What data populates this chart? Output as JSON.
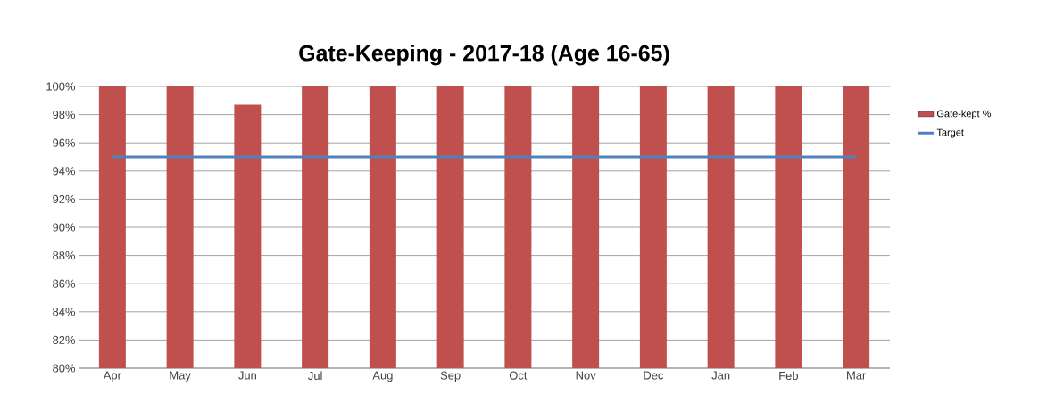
{
  "chart_data": {
    "type": "bar",
    "title": "Gate-Keeping - 2017-18 (Age 16-65)",
    "categories": [
      "Apr",
      "May",
      "Jun",
      "Jul",
      "Aug",
      "Sep",
      "Oct",
      "Nov",
      "Dec",
      "Jan",
      "Feb",
      "Mar"
    ],
    "series": [
      {
        "name": "Gate-kept %",
        "color": "#c0504d",
        "values": [
          100,
          100,
          98.7,
          100,
          100,
          100,
          100,
          100,
          100,
          100,
          100,
          100
        ]
      },
      {
        "name": "Target",
        "type": "line",
        "color": "#4f81bd",
        "values": [
          95,
          95,
          95,
          95,
          95,
          95,
          95,
          95,
          95,
          95,
          95,
          95
        ]
      }
    ],
    "ylim": [
      80,
      100
    ],
    "yticks": [
      {
        "value": 80,
        "label": "80%"
      },
      {
        "value": 82,
        "label": "82%"
      },
      {
        "value": 84,
        "label": "84%"
      },
      {
        "value": 86,
        "label": "86%"
      },
      {
        "value": 88,
        "label": "88%"
      },
      {
        "value": 90,
        "label": "90%"
      },
      {
        "value": 92,
        "label": "92%"
      },
      {
        "value": 94,
        "label": "94%"
      },
      {
        "value": 96,
        "label": "96%"
      },
      {
        "value": 98,
        "label": "98%"
      },
      {
        "value": 100,
        "label": "100%"
      }
    ],
    "grid": "y",
    "legend": "right",
    "marker": "none",
    "line_style": "solid"
  }
}
